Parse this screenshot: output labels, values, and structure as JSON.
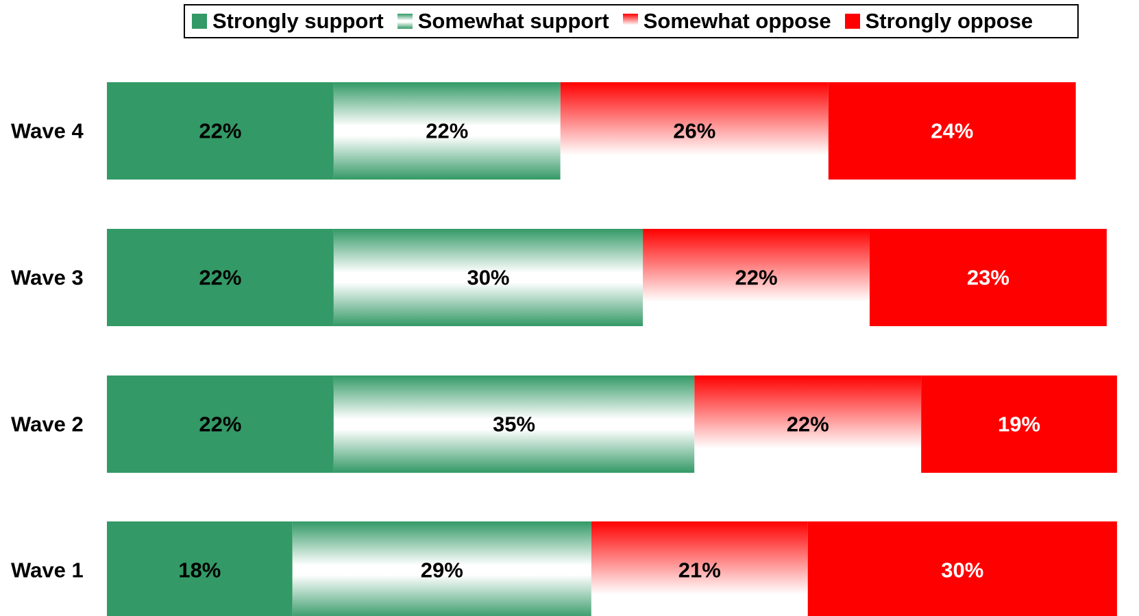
{
  "chart_data": {
    "type": "bar",
    "orientation": "horizontal",
    "stacked": true,
    "categories": [
      "Wave 4",
      "Wave 3",
      "Wave 2",
      "Wave 1"
    ],
    "series": [
      {
        "name": "Strongly support",
        "values": [
          22,
          22,
          22,
          18
        ],
        "labels": [
          "22%",
          "22%",
          "22%",
          "18%"
        ],
        "color": "#339966",
        "fill": "solid",
        "label_color": "#000000"
      },
      {
        "name": "Somewhat support",
        "values": [
          22,
          30,
          35,
          29
        ],
        "labels": [
          "22%",
          "30%",
          "35%",
          "29%"
        ],
        "color": "#339966",
        "fill": "gradient",
        "label_color": "#000000"
      },
      {
        "name": "Somewhat oppose",
        "values": [
          26,
          22,
          22,
          21
        ],
        "labels": [
          "26%",
          "22%",
          "22%",
          "21%"
        ],
        "color": "#ff0000",
        "fill": "gradient",
        "label_color": "#000000"
      },
      {
        "name": "Strongly oppose",
        "values": [
          24,
          23,
          19,
          30
        ],
        "labels": [
          "24%",
          "23%",
          "19%",
          "30%"
        ],
        "color": "#ff0000",
        "fill": "solid",
        "label_color": "#ffffff"
      }
    ],
    "xlim": [
      0,
      100
    ],
    "legend_position": "top",
    "grid": false
  }
}
